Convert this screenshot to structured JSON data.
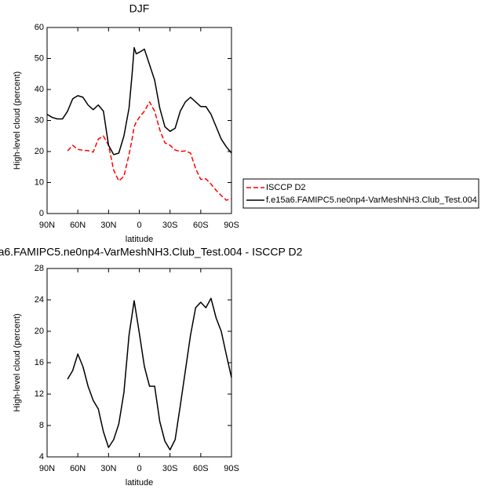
{
  "chart_data": [
    {
      "type": "line",
      "title": "DJF",
      "x_label": "latitude",
      "y_label": "High-level cloud (percent)",
      "xlim": [
        90,
        -90
      ],
      "xticks": [
        {
          "value": 90,
          "label": "90N"
        },
        {
          "value": 60,
          "label": "60N"
        },
        {
          "value": 30,
          "label": "30N"
        },
        0,
        {
          "value": -30,
          "label": "30S"
        },
        {
          "value": -60,
          "label": "60S"
        },
        {
          "value": -90,
          "label": "90S"
        }
      ],
      "ylim": [
        0,
        60
      ],
      "yticks": [
        0,
        10,
        20,
        30,
        40,
        50,
        60
      ],
      "legend": "right",
      "x": [
        90,
        85,
        80,
        75,
        70,
        65,
        60,
        55,
        50,
        45,
        40,
        35,
        30,
        25,
        20,
        15,
        10,
        7,
        5,
        3,
        0,
        -5,
        -10,
        -15,
        -20,
        -25,
        -30,
        -35,
        -40,
        -45,
        -50,
        -55,
        -60,
        -65,
        -70,
        -75,
        -80,
        -85,
        -90
      ],
      "series": [
        {
          "name": "ISCCP D2",
          "color": "#ff0000",
          "dashed": true,
          "values": [
            null,
            null,
            null,
            null,
            20.2,
            22,
            20.7,
            20.4,
            20.3,
            19.8,
            24,
            25,
            22,
            14,
            10.5,
            12,
            19,
            24,
            28,
            29.5,
            31,
            33,
            36,
            33,
            27,
            22.8,
            22,
            20.5,
            20,
            20.2,
            19.5,
            14.5,
            11,
            11.2,
            9.5,
            7.5,
            5.8,
            4.3,
            4.8
          ]
        },
        {
          "name": "f.e15a6.FAMIPC5.ne0np4-VarMeshNH3.Club_Test.004",
          "color": "#000000",
          "dashed": false,
          "values": [
            32,
            31,
            30.5,
            30.5,
            33,
            37,
            38,
            37.5,
            35,
            33.5,
            35,
            33,
            22,
            19,
            19.5,
            25,
            34,
            45,
            53.5,
            51.5,
            52,
            53,
            48,
            43,
            34,
            28,
            26.5,
            27.5,
            33,
            36,
            37.5,
            36,
            34.5,
            34.5,
            32,
            28,
            24,
            21.5,
            19.5
          ]
        }
      ]
    },
    {
      "type": "line",
      "title": "a6.FAMIPC5.ne0np4-VarMeshNH3.Club_Test.004 - ISCCP D2",
      "x_label": "latitude",
      "y_label": "High-level cloud (percent)",
      "xlim": [
        90,
        -90
      ],
      "xticks": [
        {
          "value": 90,
          "label": "90N"
        },
        {
          "value": 60,
          "label": "60N"
        },
        {
          "value": 30,
          "label": "30N"
        },
        0,
        {
          "value": -30,
          "label": "30S"
        },
        {
          "value": -60,
          "label": "60S"
        },
        {
          "value": -90,
          "label": "90S"
        }
      ],
      "ylim": [
        4,
        28
      ],
      "yticks": [
        4,
        8,
        12,
        16,
        20,
        24,
        28
      ],
      "x": [
        70,
        65,
        60,
        55,
        50,
        45,
        40,
        35,
        30,
        25,
        20,
        15,
        10,
        5,
        0,
        -5,
        -10,
        -15,
        -20,
        -25,
        -30,
        -35,
        -40,
        -45,
        -50,
        -55,
        -60,
        -65,
        -70,
        -75,
        -80,
        -85,
        -90
      ],
      "series": [
        {
          "color": "#000000",
          "dashed": false,
          "values": [
            13.9,
            15,
            17.1,
            15.5,
            13,
            11.2,
            10.1,
            7.2,
            5.2,
            6.2,
            8.2,
            12.2,
            19.5,
            23.9,
            19.8,
            15.5,
            13,
            13,
            8.5,
            6,
            4.9,
            6.2,
            10.5,
            15,
            19.5,
            23,
            23.7,
            23,
            24.2,
            21.7,
            20,
            17,
            14.1
          ]
        }
      ]
    }
  ]
}
